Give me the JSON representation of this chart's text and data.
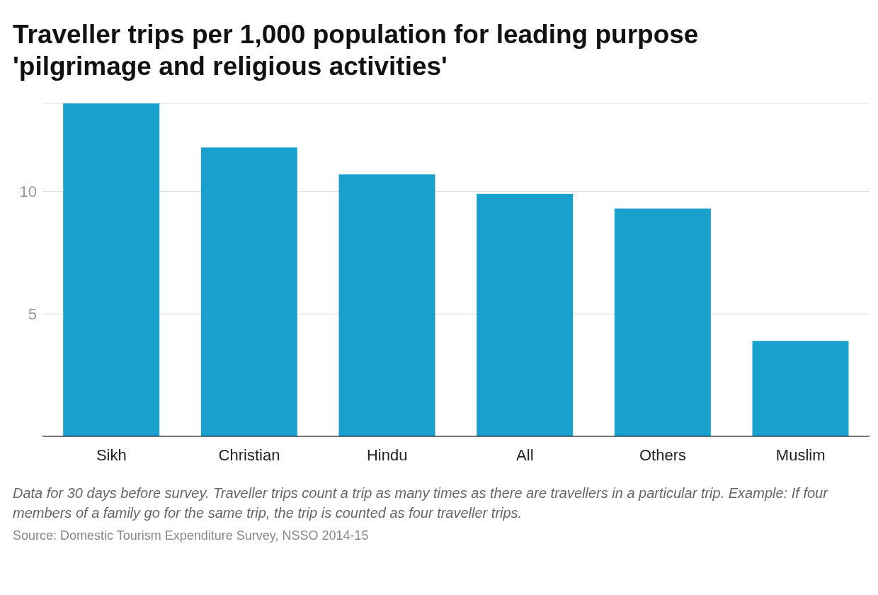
{
  "chart_data": {
    "type": "bar",
    "title": "Traveller trips per 1,000 population for leading purpose 'pilgrimage and religious activities'",
    "categories": [
      "Sikh",
      "Christian",
      "Hindu",
      "All",
      "Others",
      "Muslim"
    ],
    "values": [
      13.6,
      11.8,
      10.7,
      9.9,
      9.3,
      3.9
    ],
    "color": "#1aa0cd",
    "ylim": [
      0,
      13.6
    ],
    "yticks": [
      5,
      10
    ],
    "grid": "y",
    "legend": false,
    "annotations": [
      "Data for 30 days before survey. Traveller trips count a trip as many times as there are travellers in a particular trip. Example: If four members of a family go for the same trip, the trip is counted as four traveller trips.",
      "Source: Domestic Tourism Expenditure Survey, NSSO 2014-15"
    ]
  }
}
